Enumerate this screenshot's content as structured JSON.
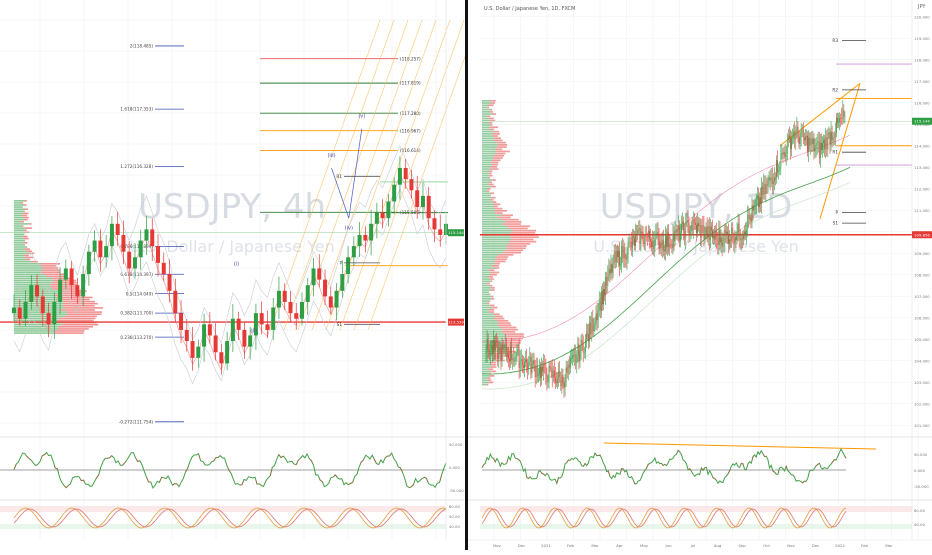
{
  "colors": {
    "up": "#2e9e44",
    "down": "#e53935",
    "grid": "#eef0f3",
    "axis_text": "#777777",
    "price_line": "#e53935",
    "divider": "#111111",
    "fib_blue": "#3f51b5",
    "fib_orange": "#ff9800",
    "fib_green": "#2e7d32",
    "fib_red": "#ef5350",
    "stoch_orange": "#e0a040",
    "stoch_red": "#e57373",
    "rsi_line": "#43a047"
  },
  "left_chart": {
    "watermark": "USDJPY, 4h",
    "watermark_sub": "U.S. Dollar / Japanese Yen",
    "price_labels": [
      "115.144",
      "113.539"
    ],
    "fib_left_labels": [
      {
        "text": "2(118.485)",
        "price": 118.485
      },
      {
        "text": "1.618(117.353)",
        "price": 117.353
      },
      {
        "text": "1.272(116.328)",
        "price": 116.328
      },
      {
        "text": "0.786(114.894)",
        "price": 114.894
      },
      {
        "text": "0.618(114.397)",
        "price": 114.397
      },
      {
        "text": "0.5(114.049)",
        "price": 114.049
      },
      {
        "text": "0.382(113.700)",
        "price": 113.7
      },
      {
        "text": "0.236(113.270)",
        "price": 113.27
      },
      {
        "text": "-0.272(111.754)",
        "price": 111.754
      }
    ],
    "fib_right_labels": [
      {
        "text": "(118.257)",
        "price": 118.257,
        "color": "fib_red"
      },
      {
        "text": "(117.819)",
        "price": 117.819,
        "color": "fib_green"
      },
      {
        "text": "(117.280)",
        "price": 117.28,
        "color": "fib_green"
      },
      {
        "text": "(116.967)",
        "price": 116.967,
        "color": "fib_orange"
      },
      {
        "text": "(116.614)",
        "price": 116.614,
        "color": "fib_orange"
      },
      {
        "text": "(115.506)",
        "price": 115.506,
        "color": "fib_green"
      }
    ],
    "wave_labels": [
      {
        "text": "(i)",
        "t": 0.515,
        "price": 114.55
      },
      {
        "text": "(ii)",
        "t": 0.555,
        "price": 113.35
      },
      {
        "text": "(iii)",
        "t": 0.735,
        "price": 116.5
      },
      {
        "text": "(iv)",
        "t": 0.775,
        "price": 115.2
      },
      {
        "text": "(v)",
        "t": 0.805,
        "price": 117.2
      }
    ],
    "pivot_labels": [
      "R1",
      "P",
      "S1"
    ]
  },
  "right_chart": {
    "title": "U.S. Dollar / Japanese Yen, 1D, FXCM",
    "watermark": "USDJPY, 1D",
    "watermark_sub": "U.S. Dollar / Japanese Yen",
    "currency": "JPY",
    "price_labels": [
      "115.144",
      "109.856"
    ],
    "y_ticks": [
      "120.000",
      "119.000",
      "118.000",
      "117.000",
      "116.000",
      "115.000",
      "114.000",
      "113.000",
      "112.000",
      "111.000",
      "110.000",
      "109.000",
      "108.000",
      "107.000",
      "106.000",
      "105.000",
      "104.000",
      "103.000",
      "102.000",
      "101.000"
    ],
    "x_ticks": [
      "Nov",
      "Dec",
      "2021",
      "Feb",
      "Mar",
      "Apr",
      "May",
      "Jun",
      "Jul",
      "Aug",
      "Sep",
      "Oct",
      "Nov",
      "Dec",
      "2022",
      "Feb",
      "Mar"
    ],
    "pivot_labels": [
      "R3",
      "R2",
      "R1",
      "P",
      "S1"
    ],
    "rsi_ticks": [
      "50.000",
      "0.000",
      "-50.000"
    ],
    "stoch_ticks": [
      "80.00",
      "40.00"
    ]
  },
  "left_axis": {
    "rsi_ticks": [
      "50.000",
      "0.000",
      "-50.000"
    ],
    "stoch_ticks": [
      "80.00",
      "50.00",
      "40.00"
    ]
  },
  "chart_data": [
    {
      "type": "line",
      "title": "USDJPY, 4h",
      "ylabel": "",
      "ylim": [
        111.5,
        119.2
      ],
      "close_series_key": "left_close",
      "rsi_series_key": "left_rsi",
      "values": [
        113.8,
        113.6,
        113.9,
        114.2,
        114.0,
        113.7,
        113.5,
        113.9,
        114.3,
        114.5,
        114.2,
        114.0,
        114.4,
        114.8,
        115.0,
        114.7,
        114.9,
        115.3,
        115.1,
        114.8,
        114.5,
        114.7,
        115.0,
        115.2,
        114.9,
        114.6,
        114.4,
        114.1,
        113.7,
        113.4,
        113.2,
        112.9,
        113.1,
        113.5,
        113.3,
        113.0,
        112.8,
        113.2,
        113.6,
        113.4,
        113.1,
        113.3,
        113.7,
        113.5,
        113.4,
        113.8,
        114.1,
        113.9,
        113.7,
        113.6,
        113.9,
        114.2,
        114.5,
        114.3,
        114.0,
        113.8,
        114.1,
        114.4,
        114.7,
        114.9,
        115.1,
        115.0,
        115.3,
        115.5,
        115.4,
        115.7,
        116.0,
        116.3,
        116.1,
        115.9,
        115.6,
        115.8,
        115.4,
        115.2,
        115.1,
        115.3
      ]
    },
    {
      "type": "line",
      "title": "U.S. Dollar / Japanese Yen, 1D, FXCM",
      "ylabel": "JPY",
      "ylim": [
        100.5,
        120.5
      ],
      "x": [
        "Nov",
        "Dec",
        "2021",
        "Feb",
        "Mar",
        "Apr",
        "May",
        "Jun",
        "Jul",
        "Aug",
        "Sep",
        "Oct",
        "Nov",
        "Dec",
        "2022"
      ],
      "series": [
        {
          "values": [
            104.6,
            104.3,
            103.6,
            103.1,
            105.2,
            108.6,
            109.8,
            109.5,
            110.3,
            109.7,
            110.0,
            112.2,
            114.6,
            113.8,
            115.4
          ]
        }
      ]
    }
  ]
}
